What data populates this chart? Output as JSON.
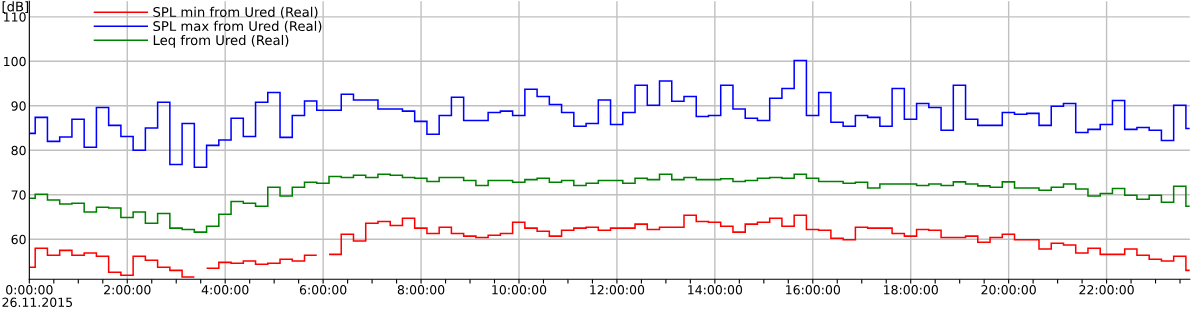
{
  "chart_data": {
    "type": "step",
    "ylabel": "[dB]",
    "annotations": [
      "26.11.2015"
    ],
    "x": [
      0,
      0.12,
      0.37,
      0.62,
      0.87,
      1.12,
      1.37,
      1.62,
      1.87,
      2.12,
      2.37,
      2.62,
      2.87,
      3.12,
      3.37,
      3.62,
      3.87,
      4.12,
      4.37,
      4.62,
      4.87,
      5.12,
      5.37,
      5.62,
      5.87,
      6.12,
      6.37,
      6.62,
      6.87,
      7.12,
      7.37,
      7.62,
      7.87,
      8.12,
      8.37,
      8.62,
      8.87,
      9.12,
      9.37,
      9.62,
      9.87,
      10.12,
      10.37,
      10.62,
      10.87,
      11.12,
      11.37,
      11.62,
      11.87,
      12.12,
      12.37,
      12.62,
      12.87,
      13.12,
      13.37,
      13.62,
      13.87,
      14.12,
      14.37,
      14.62,
      14.87,
      15.12,
      15.37,
      15.62,
      15.87,
      16.12,
      16.37,
      16.62,
      16.87,
      17.12,
      17.37,
      17.62,
      17.87,
      18.12,
      18.37,
      18.62,
      18.87,
      19.12,
      19.37,
      19.62,
      19.87,
      20.12,
      20.37,
      20.62,
      20.87,
      21.12,
      21.37,
      21.62,
      21.87,
      22.12,
      22.37,
      22.62,
      22.87,
      23.12,
      23.37,
      23.62
    ],
    "series": [
      {
        "name": "SPL min from Ured (Real)",
        "color": "#ff0000",
        "values": [
          53.7,
          58.0,
          56.4,
          57.5,
          56.4,
          56.9,
          56.2,
          52.6,
          51.9,
          56.2,
          55.3,
          53.7,
          53.0,
          51.5,
          null,
          53.5,
          54.8,
          54.6,
          55.1,
          54.4,
          54.6,
          55.5,
          55.1,
          56.4,
          null,
          56.6,
          61.1,
          59.6,
          63.6,
          64.0,
          63.1,
          64.7,
          62.5,
          61.3,
          62.7,
          61.3,
          60.7,
          60.4,
          60.9,
          61.3,
          63.8,
          62.5,
          61.8,
          60.7,
          62.0,
          62.5,
          62.7,
          62.0,
          62.5,
          62.5,
          63.4,
          62.2,
          62.7,
          62.7,
          65.4,
          64.0,
          63.8,
          62.9,
          61.6,
          63.4,
          63.8,
          64.7,
          62.9,
          65.4,
          62.2,
          62.0,
          60.2,
          59.9,
          62.7,
          62.5,
          62.5,
          61.3,
          60.7,
          62.2,
          62.0,
          60.4,
          60.4,
          60.7,
          59.3,
          60.4,
          61.1,
          59.9,
          59.9,
          57.8,
          59.1,
          58.7,
          56.9,
          58.0,
          56.6,
          56.6,
          57.8,
          56.4,
          55.5,
          55.1,
          56.2,
          53.0
        ]
      },
      {
        "name": "SPL max from Ured (Real)",
        "color": "#0000ff",
        "values": [
          83.8,
          87.4,
          82.0,
          83.0,
          87.0,
          80.7,
          89.6,
          85.6,
          83.1,
          80.0,
          85.0,
          90.8,
          76.8,
          86.0,
          76.2,
          81.1,
          82.3,
          87.2,
          83.1,
          90.8,
          93.0,
          82.9,
          87.8,
          91.1,
          89.0,
          89.0,
          92.6,
          91.3,
          91.3,
          89.3,
          89.3,
          88.8,
          86.5,
          83.6,
          87.8,
          91.9,
          86.7,
          86.7,
          88.5,
          88.8,
          87.8,
          93.7,
          92.1,
          90.3,
          88.5,
          85.4,
          86.0,
          91.3,
          85.8,
          88.5,
          94.6,
          90.1,
          95.6,
          91.0,
          92.1,
          87.6,
          87.8,
          94.6,
          89.3,
          87.2,
          86.7,
          91.7,
          93.9,
          100.2,
          87.8,
          93.0,
          86.3,
          85.4,
          87.8,
          87.4,
          85.4,
          93.9,
          87.0,
          90.5,
          89.6,
          84.5,
          94.6,
          87.0,
          85.6,
          85.6,
          88.5,
          88.1,
          88.3,
          85.6,
          89.9,
          90.5,
          84.0,
          84.7,
          85.8,
          91.2,
          84.7,
          85.1,
          84.5,
          82.2,
          90.1,
          84.9
        ]
      },
      {
        "name": "Leq from Ured (Real)",
        "color": "#008000",
        "values": [
          69.2,
          70.1,
          68.8,
          67.9,
          68.1,
          66.1,
          67.2,
          67.0,
          64.9,
          66.1,
          63.6,
          65.8,
          62.5,
          62.2,
          61.6,
          62.9,
          65.6,
          68.5,
          68.1,
          67.4,
          71.7,
          69.7,
          71.7,
          72.8,
          72.6,
          74.1,
          73.9,
          74.4,
          73.9,
          74.6,
          74.4,
          73.9,
          73.7,
          73.0,
          73.9,
          73.9,
          73.2,
          72.1,
          73.2,
          73.2,
          72.8,
          73.4,
          73.7,
          72.8,
          73.2,
          72.1,
          72.6,
          73.2,
          73.2,
          72.6,
          73.7,
          73.4,
          74.6,
          73.4,
          73.9,
          73.4,
          73.4,
          73.6,
          73.0,
          73.2,
          73.7,
          73.9,
          73.7,
          74.6,
          73.7,
          73.0,
          73.0,
          72.6,
          72.8,
          71.5,
          72.4,
          72.4,
          72.4,
          72.1,
          72.4,
          72.1,
          72.9,
          72.4,
          72.0,
          71.7,
          72.9,
          71.5,
          71.5,
          71.0,
          71.7,
          72.4,
          71.3,
          69.7,
          70.3,
          71.4,
          69.9,
          69.0,
          69.9,
          68.3,
          71.9,
          67.4
        ]
      }
    ],
    "xlim": [
      0,
      23.7
    ],
    "xticks": [
      {
        "value": 0,
        "label": "0:00:00"
      },
      {
        "value": 0.5,
        "label": null
      },
      {
        "value": 1,
        "label": null
      },
      {
        "value": 1.5,
        "label": null
      },
      {
        "value": 2,
        "label": "2:00:00"
      },
      {
        "value": 2.5,
        "label": null
      },
      {
        "value": 3,
        "label": null
      },
      {
        "value": 3.5,
        "label": null
      },
      {
        "value": 4,
        "label": "4:00:00"
      },
      {
        "value": 4.5,
        "label": null
      },
      {
        "value": 5,
        "label": null
      },
      {
        "value": 5.5,
        "label": null
      },
      {
        "value": 6,
        "label": "6:00:00"
      },
      {
        "value": 6.5,
        "label": null
      },
      {
        "value": 7,
        "label": null
      },
      {
        "value": 7.5,
        "label": null
      },
      {
        "value": 8,
        "label": "8:00:00"
      },
      {
        "value": 8.5,
        "label": null
      },
      {
        "value": 9,
        "label": null
      },
      {
        "value": 9.5,
        "label": null
      },
      {
        "value": 10,
        "label": "10:00:00"
      },
      {
        "value": 10.5,
        "label": null
      },
      {
        "value": 11,
        "label": null
      },
      {
        "value": 11.5,
        "label": null
      },
      {
        "value": 12,
        "label": "12:00:00"
      },
      {
        "value": 12.5,
        "label": null
      },
      {
        "value": 13,
        "label": null
      },
      {
        "value": 13.5,
        "label": null
      },
      {
        "value": 14,
        "label": "14:00:00"
      },
      {
        "value": 14.5,
        "label": null
      },
      {
        "value": 15,
        "label": null
      },
      {
        "value": 15.5,
        "label": null
      },
      {
        "value": 16,
        "label": "16:00:00"
      },
      {
        "value": 16.5,
        "label": null
      },
      {
        "value": 17,
        "label": null
      },
      {
        "value": 17.5,
        "label": null
      },
      {
        "value": 18,
        "label": "18:00:00"
      },
      {
        "value": 18.5,
        "label": null
      },
      {
        "value": 19,
        "label": null
      },
      {
        "value": 19.5,
        "label": null
      },
      {
        "value": 20,
        "label": "20:00:00"
      },
      {
        "value": 20.5,
        "label": null
      },
      {
        "value": 21,
        "label": null
      },
      {
        "value": 21.5,
        "label": null
      },
      {
        "value": 22,
        "label": "22:00:00"
      },
      {
        "value": 22.5,
        "label": null
      },
      {
        "value": 23,
        "label": null
      },
      {
        "value": 23.5,
        "label": null
      }
    ],
    "ylim": [
      51,
      113.5
    ],
    "yticks": [
      60,
      70,
      80,
      90,
      100,
      110
    ],
    "grid": true,
    "legend": "top left"
  }
}
